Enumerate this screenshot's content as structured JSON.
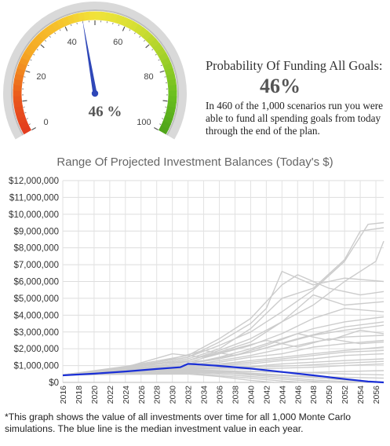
{
  "gauge": {
    "value": 46,
    "min": 0,
    "max": 100,
    "ticks": [
      "0",
      "20",
      "40",
      "60",
      "80",
      "100"
    ],
    "readout": "46 %",
    "colors": {
      "red": "#e23a1f",
      "orange": "#f5a623",
      "yellow": "#f2e33a",
      "green": "#6abf1f",
      "needle": "#2f47b8"
    }
  },
  "summary": {
    "title": "Probability Of Funding All Goals:",
    "percent": "46%",
    "text": "In 460 of the 1,000 scenarios run you were able to fund all spending goals from today through the end of the plan."
  },
  "chart_data": {
    "type": "line",
    "title": "Range Of Projected Investment Balances (Today's $)",
    "xlabel": "",
    "ylabel": "",
    "x_range": [
      2016,
      2057
    ],
    "ylim": [
      0,
      12000000
    ],
    "y_ticks": [
      "$0",
      "$1,000,000",
      "$2,000,000",
      "$3,000,000",
      "$4,000,000",
      "$5,000,000",
      "$6,000,000",
      "$7,000,000",
      "$8,000,000",
      "$9,000,000",
      "$10,000,000",
      "$11,000,000",
      "$12,000,000"
    ],
    "x_ticks": [
      "2016",
      "2018",
      "2020",
      "2022",
      "2024",
      "2026",
      "2028",
      "2030",
      "2032",
      "2034",
      "2036",
      "2038",
      "2040",
      "2042",
      "2044",
      "2046",
      "2048",
      "2050",
      "2052",
      "2054",
      "2056"
    ],
    "grid": true,
    "median_color": "#1a2fd6",
    "scenario_color": "#cccccc",
    "median": {
      "x": [
        2016,
        2020,
        2024,
        2028,
        2031,
        2032,
        2033,
        2036,
        2040,
        2044,
        2048,
        2052,
        2055,
        2057
      ],
      "y": [
        420000,
        520000,
        650000,
        800000,
        900000,
        1100000,
        1080000,
        980000,
        820000,
        620000,
        420000,
        200000,
        50000,
        0
      ]
    },
    "scenarios": [
      {
        "x": [
          2016,
          2024,
          2032,
          2036,
          2040,
          2044,
          2048,
          2052,
          2055,
          2057
        ],
        "y": [
          450000,
          900000,
          1500000,
          2200000,
          3000000,
          4200000,
          5500000,
          7200000,
          9400000,
          9500000
        ]
      },
      {
        "x": [
          2016,
          2024,
          2032,
          2036,
          2040,
          2044,
          2048,
          2052,
          2054,
          2057
        ],
        "y": [
          450000,
          850000,
          1400000,
          2000000,
          3200000,
          5000000,
          5600000,
          7300000,
          9000000,
          9200000
        ]
      },
      {
        "x": [
          2016,
          2024,
          2032,
          2036,
          2040,
          2044,
          2048,
          2052,
          2056,
          2057
        ],
        "y": [
          450000,
          900000,
          1300000,
          1900000,
          2600000,
          3600000,
          4600000,
          6000000,
          7200000,
          8400000
        ]
      },
      {
        "x": [
          2016,
          2024,
          2032,
          2036,
          2040,
          2044,
          2046,
          2050,
          2054,
          2057
        ],
        "y": [
          450000,
          950000,
          1600000,
          2600000,
          3800000,
          5800000,
          6400000,
          5600000,
          5200000,
          5400000
        ]
      },
      {
        "x": [
          2016,
          2024,
          2032,
          2036,
          2040,
          2042,
          2044,
          2048,
          2052,
          2057
        ],
        "y": [
          450000,
          900000,
          1500000,
          2400000,
          3500000,
          4400000,
          6600000,
          5800000,
          6200000,
          6000000
        ]
      },
      {
        "x": [
          2016,
          2024,
          2032,
          2036,
          2040,
          2044,
          2048,
          2052,
          2057
        ],
        "y": [
          450000,
          850000,
          1300000,
          1800000,
          2400000,
          3600000,
          5200000,
          4600000,
          4800000
        ]
      },
      {
        "x": [
          2016,
          2024,
          2032,
          2036,
          2040,
          2044,
          2048,
          2052,
          2057
        ],
        "y": [
          450000,
          800000,
          1200000,
          1700000,
          2200000,
          2900000,
          3800000,
          4400000,
          4200000
        ]
      },
      {
        "x": [
          2016,
          2024,
          2032,
          2036,
          2040,
          2044,
          2048,
          2052,
          2057
        ],
        "y": [
          450000,
          800000,
          1100000,
          1500000,
          2000000,
          2600000,
          3200000,
          3600000,
          3900000
        ]
      },
      {
        "x": [
          2016,
          2024,
          2032,
          2036,
          2040,
          2044,
          2048,
          2052,
          2057
        ],
        "y": [
          450000,
          750000,
          1100000,
          1400000,
          1800000,
          2300000,
          2800000,
          3100000,
          3400000
        ]
      },
      {
        "x": [
          2016,
          2024,
          2032,
          2036,
          2040,
          2044,
          2048,
          2052,
          2057
        ],
        "y": [
          450000,
          750000,
          1000000,
          1300000,
          1600000,
          2000000,
          2400000,
          2700000,
          2800000
        ]
      },
      {
        "x": [
          2016,
          2024,
          2032,
          2036,
          2040,
          2044,
          2048,
          2052,
          2057
        ],
        "y": [
          450000,
          700000,
          1000000,
          1200000,
          1500000,
          1700000,
          2100000,
          2300000,
          2500000
        ]
      },
      {
        "x": [
          2016,
          2024,
          2032,
          2036,
          2040,
          2044,
          2048,
          2052,
          2057
        ],
        "y": [
          450000,
          700000,
          950000,
          1100000,
          1300000,
          1500000,
          1700000,
          1900000,
          2100000
        ]
      },
      {
        "x": [
          2016,
          2024,
          2032,
          2036,
          2040,
          2044,
          2048,
          2052,
          2057
        ],
        "y": [
          450000,
          650000,
          900000,
          1000000,
          1100000,
          1300000,
          1400000,
          1600000,
          1700000
        ]
      },
      {
        "x": [
          2016,
          2024,
          2032,
          2036,
          2040,
          2044,
          2048,
          2052,
          2057
        ],
        "y": [
          450000,
          650000,
          850000,
          900000,
          950000,
          1100000,
          1200000,
          1300000,
          1400000
        ]
      },
      {
        "x": [
          2016,
          2024,
          2032,
          2036,
          2040,
          2044,
          2048,
          2052,
          2057
        ],
        "y": [
          450000,
          600000,
          800000,
          800000,
          800000,
          850000,
          900000,
          1000000,
          1100000
        ]
      },
      {
        "x": [
          2016,
          2024,
          2032,
          2036,
          2040,
          2044,
          2048,
          2052,
          2057
        ],
        "y": [
          450000,
          600000,
          750000,
          700000,
          650000,
          600000,
          600000,
          650000,
          700000
        ]
      },
      {
        "x": [
          2016,
          2024,
          2032,
          2036,
          2040,
          2044,
          2048,
          2052,
          2057
        ],
        "y": [
          450000,
          550000,
          700000,
          650000,
          550000,
          450000,
          350000,
          300000,
          250000
        ]
      },
      {
        "x": [
          2016,
          2024,
          2032,
          2036,
          2040,
          2044,
          2048,
          2052,
          2055
        ],
        "y": [
          450000,
          550000,
          650000,
          600000,
          450000,
          300000,
          150000,
          50000,
          0
        ]
      },
      {
        "x": [
          2016,
          2024,
          2032,
          2036,
          2040,
          2044,
          2048,
          2051
        ],
        "y": [
          450000,
          500000,
          600000,
          500000,
          350000,
          200000,
          60000,
          0
        ]
      },
      {
        "x": [
          2016,
          2024,
          2032,
          2036,
          2040,
          2044,
          2047
        ],
        "y": [
          450000,
          500000,
          550000,
          400000,
          250000,
          80000,
          0
        ]
      },
      {
        "x": [
          2016,
          2024,
          2032,
          2036,
          2040,
          2043
        ],
        "y": [
          450000,
          480000,
          500000,
          350000,
          120000,
          0
        ]
      },
      {
        "x": [
          2016,
          2024,
          2030,
          2034,
          2038,
          2042,
          2046,
          2050,
          2054,
          2057
        ],
        "y": [
          450000,
          900000,
          1700000,
          1500000,
          2000000,
          2500000,
          2100000,
          2600000,
          2300000,
          2400000
        ]
      },
      {
        "x": [
          2016,
          2024,
          2030,
          2034,
          2038,
          2042,
          2046,
          2050,
          2054,
          2057
        ],
        "y": [
          450000,
          800000,
          1400000,
          1900000,
          1600000,
          2200000,
          2900000,
          2500000,
          3100000,
          2900000
        ]
      },
      {
        "x": [
          2016,
          2022,
          2028,
          2034,
          2040,
          2046,
          2052,
          2057
        ],
        "y": [
          450000,
          700000,
          1100000,
          1300000,
          1800000,
          2600000,
          3300000,
          3600000
        ]
      },
      {
        "x": [
          2016,
          2022,
          2028,
          2034,
          2040,
          2046,
          2052,
          2057
        ],
        "y": [
          450000,
          650000,
          900000,
          1000000,
          1200000,
          1500000,
          1800000,
          1900000
        ]
      },
      {
        "x": [
          2016,
          2022,
          2028,
          2034,
          2040,
          2046,
          2052,
          2057
        ],
        "y": [
          450000,
          600000,
          750000,
          850000,
          900000,
          1000000,
          1150000,
          1250000
        ]
      },
      {
        "x": [
          2016,
          2022,
          2028,
          2034,
          2040,
          2046,
          2052,
          2057
        ],
        "y": [
          450000,
          600000,
          700000,
          700000,
          650000,
          600000,
          500000,
          450000
        ]
      },
      {
        "x": [
          2016,
          2022,
          2028,
          2034,
          2040,
          2046,
          2052,
          2056
        ],
        "y": [
          450000,
          550000,
          650000,
          600000,
          500000,
          350000,
          150000,
          0
        ]
      }
    ]
  },
  "footnote": "*This graph shows the value of all investments over time for all 1,000 Monte Carlo simulations. The blue line is the median investment value in each year."
}
